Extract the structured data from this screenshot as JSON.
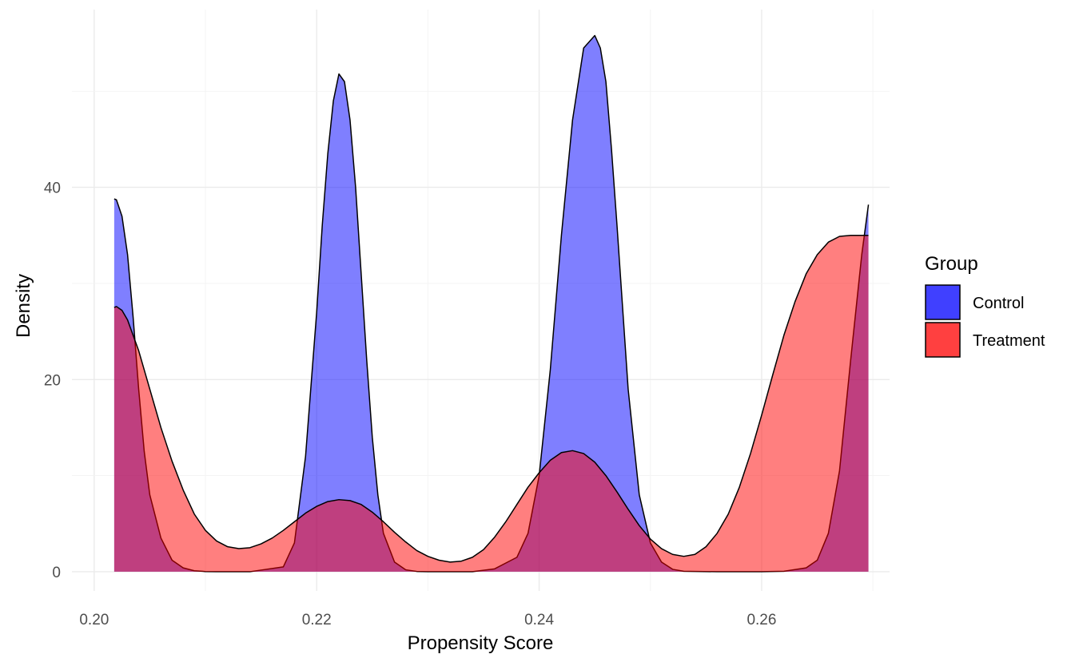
{
  "chart_data": {
    "type": "area",
    "title": "",
    "xlabel": "Propensity Score",
    "ylabel": "Density",
    "xlim": [
      0.198,
      0.2715
    ],
    "ylim": [
      -2.0,
      58.5
    ],
    "x_ticks": [
      0.2,
      0.22,
      0.24,
      0.26
    ],
    "x_tick_labels": [
      "0.20",
      "0.22",
      "0.24",
      "0.26"
    ],
    "y_ticks": [
      0,
      20,
      40
    ],
    "y_tick_labels": [
      "0",
      "20",
      "40"
    ],
    "grid": true,
    "legend": {
      "title": "Group",
      "position": "right",
      "entries": [
        "Control",
        "Treatment"
      ]
    },
    "series": [
      {
        "name": "Control",
        "color": "#0000ff",
        "alpha": 0.5,
        "x": [
          0.2018,
          0.202,
          0.2025,
          0.203,
          0.2035,
          0.204,
          0.2045,
          0.205,
          0.206,
          0.207,
          0.208,
          0.209,
          0.21,
          0.211,
          0.214,
          0.217,
          0.218,
          0.219,
          0.22,
          0.2205,
          0.221,
          0.2215,
          0.222,
          0.2225,
          0.223,
          0.2235,
          0.224,
          0.2245,
          0.225,
          0.2255,
          0.226,
          0.227,
          0.228,
          0.229,
          0.23,
          0.232,
          0.234,
          0.236,
          0.238,
          0.239,
          0.24,
          0.241,
          0.242,
          0.243,
          0.244,
          0.245,
          0.2455,
          0.246,
          0.2465,
          0.247,
          0.248,
          0.249,
          0.25,
          0.251,
          0.252,
          0.253,
          0.256,
          0.26,
          0.262,
          0.264,
          0.265,
          0.266,
          0.267,
          0.268,
          0.269,
          0.2696
        ],
        "y": [
          38.8,
          38.7,
          37.0,
          33.0,
          26.5,
          19.0,
          12.5,
          8.0,
          3.5,
          1.2,
          0.4,
          0.1,
          0.02,
          0.0,
          0.0,
          0.5,
          3.0,
          12.0,
          27.0,
          36.0,
          43.5,
          49.0,
          51.8,
          51.0,
          47.0,
          40.0,
          31.0,
          22.0,
          14.0,
          8.0,
          4.0,
          1.0,
          0.2,
          0.03,
          0.0,
          0.0,
          0.0,
          0.3,
          1.5,
          4.0,
          10.0,
          21.0,
          35.0,
          47.0,
          54.5,
          55.8,
          54.5,
          51.0,
          44.0,
          36.0,
          19.0,
          8.0,
          3.0,
          1.0,
          0.25,
          0.05,
          0.0,
          0.0,
          0.05,
          0.4,
          1.2,
          4.0,
          10.5,
          22.0,
          33.0,
          38.2
        ]
      },
      {
        "name": "Treatment",
        "color": "#ff0000",
        "alpha": 0.5,
        "x": [
          0.2018,
          0.202,
          0.2025,
          0.203,
          0.204,
          0.205,
          0.206,
          0.207,
          0.208,
          0.209,
          0.21,
          0.211,
          0.212,
          0.213,
          0.214,
          0.215,
          0.216,
          0.217,
          0.218,
          0.219,
          0.22,
          0.221,
          0.222,
          0.223,
          0.224,
          0.225,
          0.226,
          0.227,
          0.228,
          0.229,
          0.23,
          0.231,
          0.232,
          0.233,
          0.234,
          0.235,
          0.236,
          0.237,
          0.238,
          0.239,
          0.24,
          0.241,
          0.242,
          0.243,
          0.244,
          0.245,
          0.246,
          0.247,
          0.248,
          0.249,
          0.25,
          0.251,
          0.252,
          0.253,
          0.254,
          0.255,
          0.256,
          0.257,
          0.258,
          0.259,
          0.26,
          0.261,
          0.262,
          0.263,
          0.264,
          0.265,
          0.266,
          0.267,
          0.268,
          0.269,
          0.2696
        ],
        "y": [
          27.5,
          27.6,
          27.2,
          26.2,
          23.0,
          19.0,
          15.0,
          11.5,
          8.5,
          6.0,
          4.3,
          3.2,
          2.6,
          2.4,
          2.5,
          2.9,
          3.5,
          4.3,
          5.2,
          6.1,
          6.8,
          7.3,
          7.5,
          7.4,
          7.0,
          6.2,
          5.2,
          4.1,
          3.1,
          2.2,
          1.6,
          1.2,
          1.0,
          1.1,
          1.5,
          2.3,
          3.6,
          5.2,
          7.0,
          8.8,
          10.3,
          11.6,
          12.4,
          12.6,
          12.3,
          11.4,
          10.0,
          8.3,
          6.5,
          4.8,
          3.4,
          2.4,
          1.8,
          1.6,
          1.8,
          2.6,
          4.0,
          6.0,
          8.8,
          12.3,
          16.3,
          20.5,
          24.6,
          28.1,
          31.0,
          33.0,
          34.3,
          34.9,
          35.0,
          35.0,
          35.0
        ]
      }
    ]
  }
}
